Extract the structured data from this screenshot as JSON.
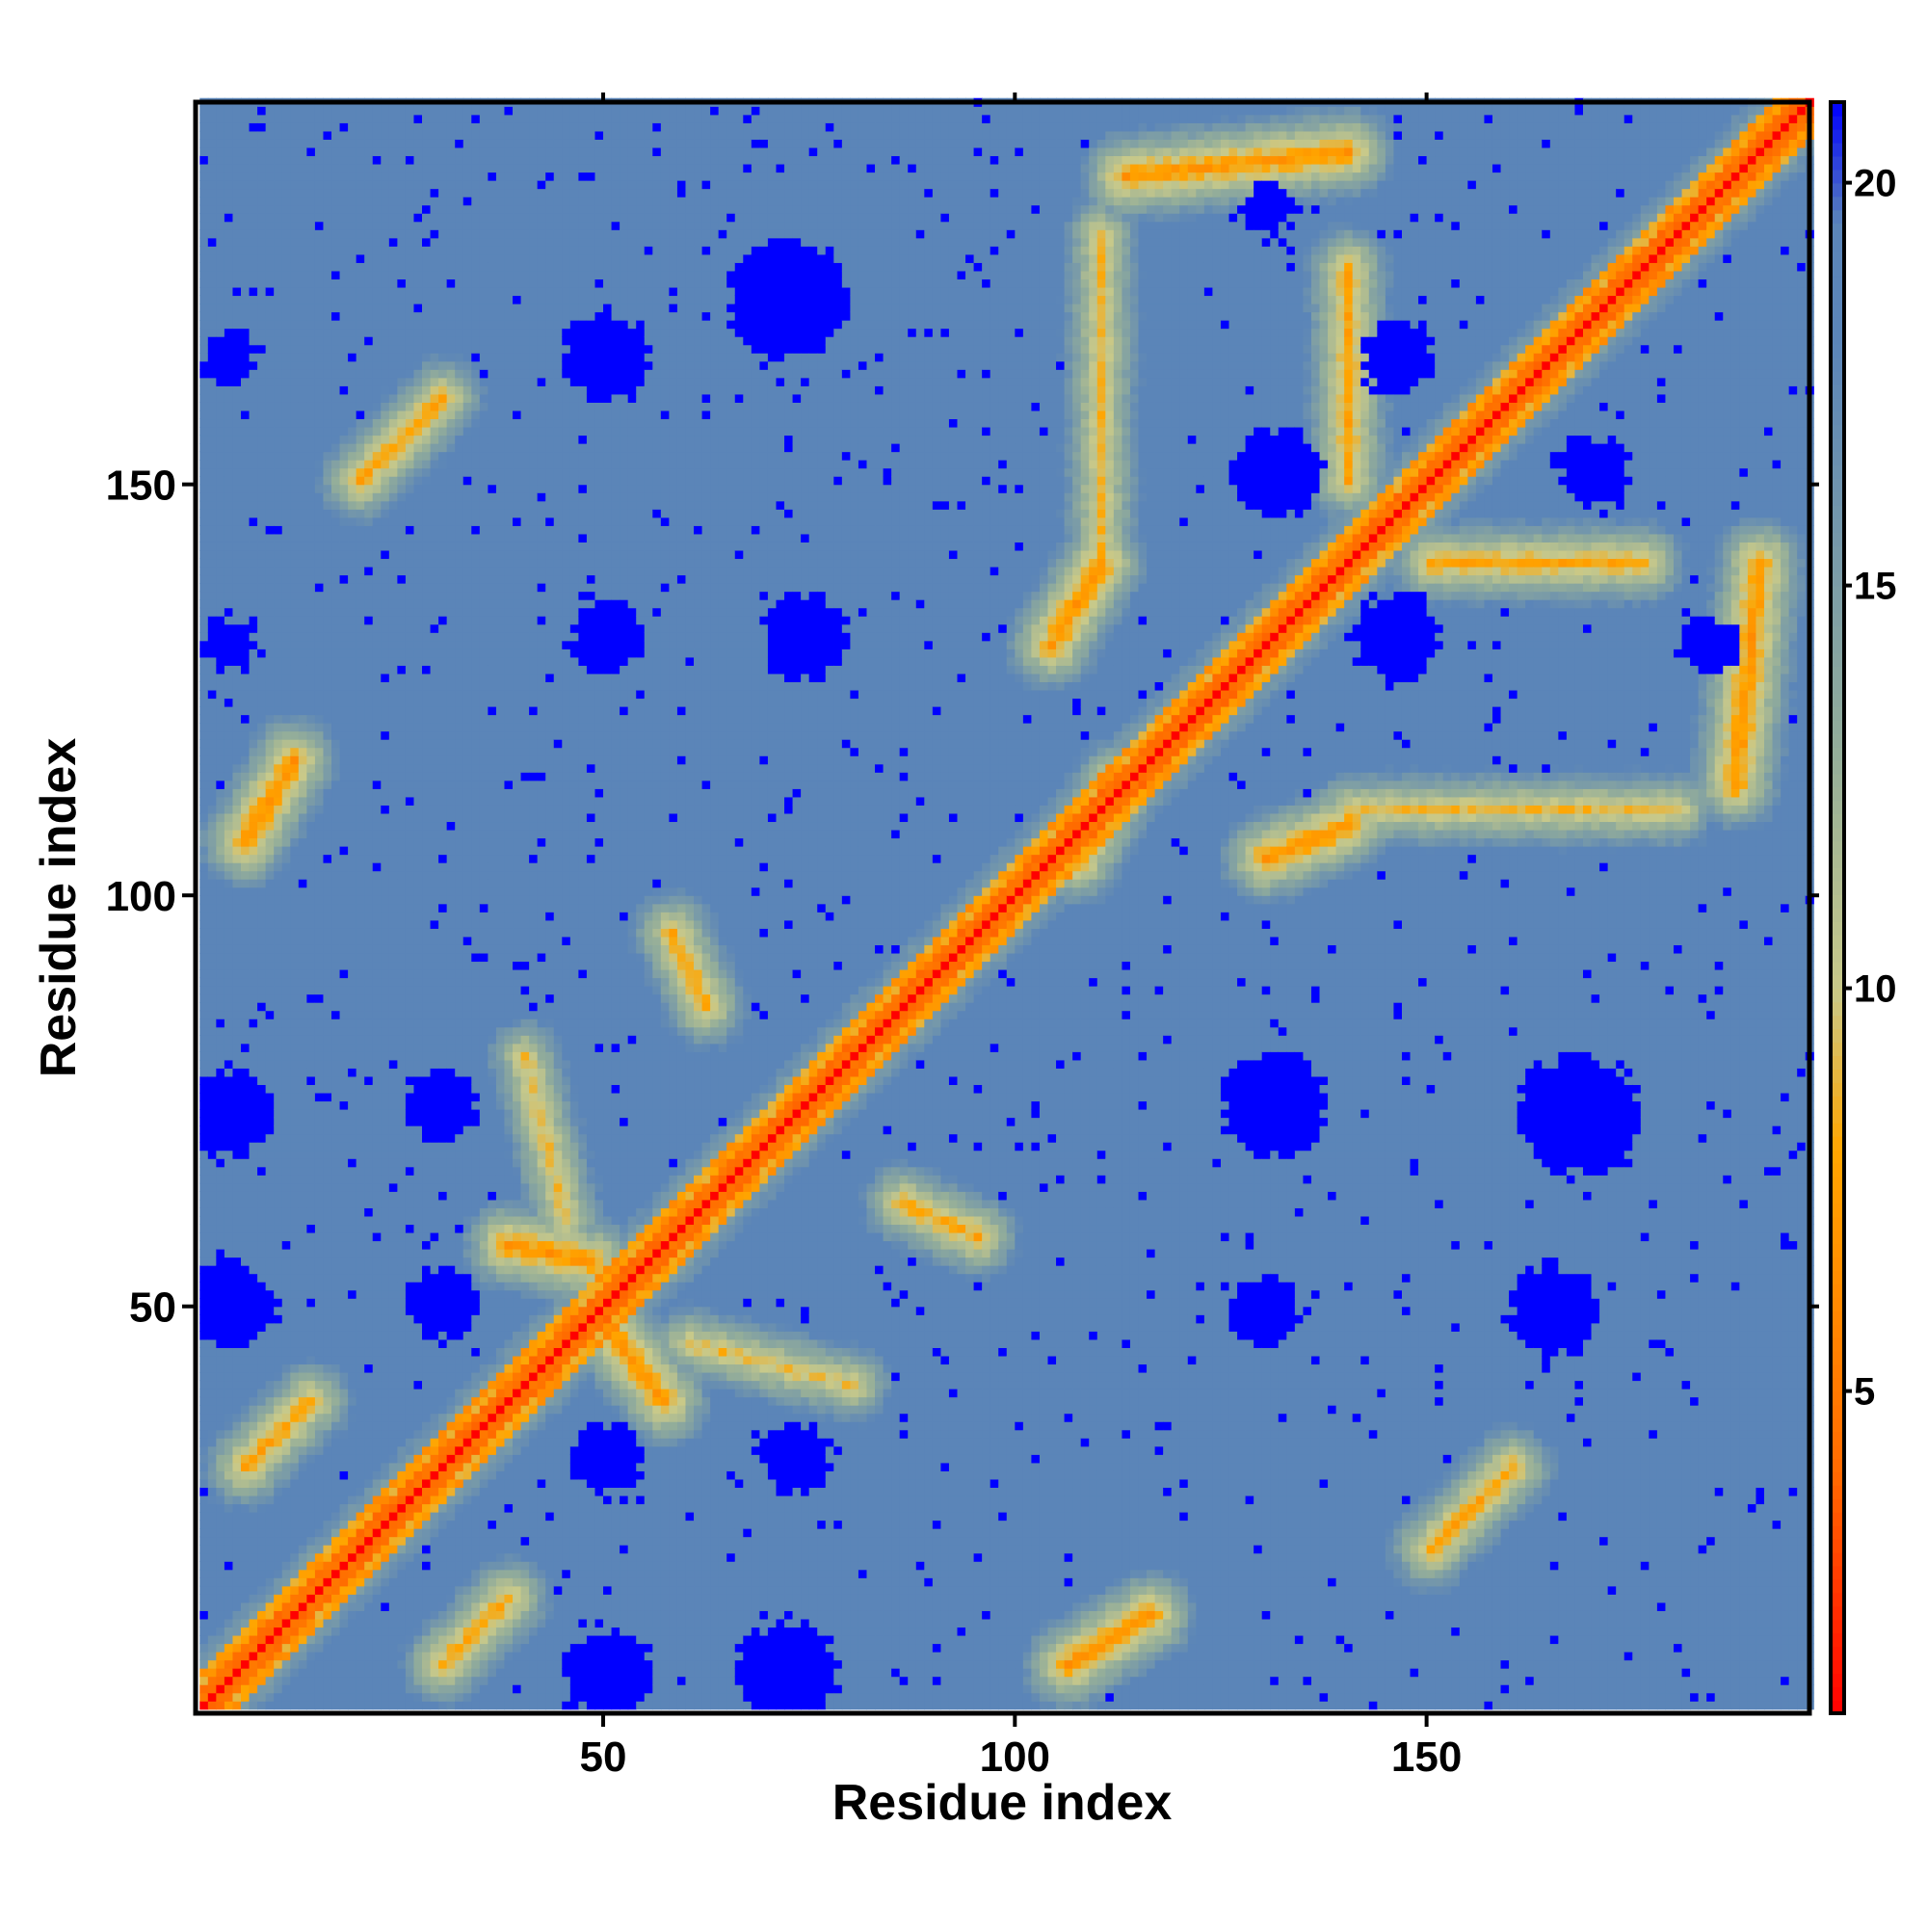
{
  "chart_data": {
    "type": "heatmap",
    "title": "",
    "xlabel": "Residue index",
    "ylabel": "Residue index",
    "n_residues": 196,
    "xlim": [
      1,
      196
    ],
    "ylim": [
      1,
      196
    ],
    "x_ticks": [
      50,
      100,
      150
    ],
    "y_ticks": [
      50,
      100,
      150
    ],
    "colorbar": {
      "range": [
        1,
        21
      ],
      "ticks": [
        5,
        10,
        15,
        20
      ],
      "placement": "right",
      "stops": [
        {
          "value": 1,
          "color": "#ff0000"
        },
        {
          "value": 4,
          "color": "#ff6a00"
        },
        {
          "value": 8,
          "color": "#ffa500"
        },
        {
          "value": 10,
          "color": "#c8c98a"
        },
        {
          "value": 13,
          "color": "#93ad9a"
        },
        {
          "value": 18,
          "color": "#5b85b8"
        },
        {
          "value": 19.5,
          "color": "#5b85b8"
        },
        {
          "value": 21,
          "color": "#0000ff"
        }
      ]
    },
    "values_description_excluded": true,
    "contact_segments": [
      {
        "x0": 48,
        "y0": 55,
        "x1": 38,
        "y1": 57,
        "v": 6
      },
      {
        "x0": 50,
        "y0": 47,
        "x1": 57,
        "y1": 38,
        "v": 6
      },
      {
        "x0": 107,
        "y0": 104,
        "x1": 112,
        "y1": 113,
        "v": 6
      },
      {
        "x0": 110,
        "y0": 140,
        "x1": 104,
        "y1": 130,
        "v": 6
      },
      {
        "x0": 140,
        "y0": 108,
        "x1": 130,
        "y1": 104,
        "v": 6
      },
      {
        "x0": 150,
        "y0": 140,
        "x1": 176,
        "y1": 140,
        "v": 7
      },
      {
        "x0": 140,
        "y0": 150,
        "x1": 140,
        "y1": 176,
        "v": 7
      },
      {
        "x0": 113,
        "y0": 187,
        "x1": 140,
        "y1": 190,
        "v": 6
      },
      {
        "x0": 187,
        "y0": 113,
        "x1": 190,
        "y1": 140,
        "v": 6
      },
      {
        "x0": 6,
        "y0": 106,
        "x1": 12,
        "y1": 116,
        "v": 6
      },
      {
        "x0": 106,
        "y0": 6,
        "x1": 116,
        "y1": 12,
        "v": 6
      },
      {
        "x0": 30,
        "y0": 6,
        "x1": 38,
        "y1": 14,
        "v": 7
      },
      {
        "x0": 6,
        "y0": 30,
        "x1": 14,
        "y1": 38,
        "v": 7
      },
      {
        "x0": 58,
        "y0": 95,
        "x1": 62,
        "y1": 86,
        "v": 7
      },
      {
        "x0": 95,
        "y0": 58,
        "x1": 86,
        "y1": 62,
        "v": 7
      },
      {
        "x0": 20,
        "y0": 150,
        "x1": 30,
        "y1": 160,
        "v": 7
      },
      {
        "x0": 150,
        "y0": 20,
        "x1": 160,
        "y1": 30,
        "v": 7
      },
      {
        "x0": 140,
        "y0": 110,
        "x1": 180,
        "y1": 110,
        "v": 8
      },
      {
        "x0": 110,
        "y0": 140,
        "x1": 110,
        "y1": 180,
        "v": 8
      },
      {
        "x0": 60,
        "y0": 45,
        "x1": 80,
        "y1": 40,
        "v": 8
      },
      {
        "x0": 45,
        "y0": 60,
        "x1": 40,
        "y1": 80,
        "v": 8
      }
    ],
    "far_blobs": [
      {
        "x": 50,
        "y": 5,
        "r": 5
      },
      {
        "x": 72,
        "y": 5,
        "r": 6
      },
      {
        "x": 50,
        "y": 31,
        "r": 4
      },
      {
        "x": 73,
        "y": 31,
        "r": 4
      },
      {
        "x": 4,
        "y": 50,
        "r": 5
      },
      {
        "x": 30,
        "y": 50,
        "r": 4
      },
      {
        "x": 130,
        "y": 49,
        "r": 4
      },
      {
        "x": 165,
        "y": 49,
        "r": 5
      },
      {
        "x": 4,
        "y": 73,
        "r": 5
      },
      {
        "x": 30,
        "y": 74,
        "r": 4
      },
      {
        "x": 131,
        "y": 74,
        "r": 6
      },
      {
        "x": 168,
        "y": 73,
        "r": 7
      },
      {
        "x": 50,
        "y": 131,
        "r": 4
      },
      {
        "x": 74,
        "y": 131,
        "r": 5
      },
      {
        "x": 131,
        "y": 151,
        "r": 5
      },
      {
        "x": 146,
        "y": 131,
        "r": 5
      },
      {
        "x": 170,
        "y": 151,
        "r": 4
      },
      {
        "x": 184,
        "y": 130,
        "r": 3
      },
      {
        "x": 50,
        "y": 165,
        "r": 5
      },
      {
        "x": 72,
        "y": 172,
        "r": 7
      },
      {
        "x": 146,
        "y": 165,
        "r": 4
      },
      {
        "x": 130,
        "y": 183,
        "r": 3
      },
      {
        "x": 4,
        "y": 130,
        "r": 3
      },
      {
        "x": 4,
        "y": 165,
        "r": 3
      }
    ]
  }
}
